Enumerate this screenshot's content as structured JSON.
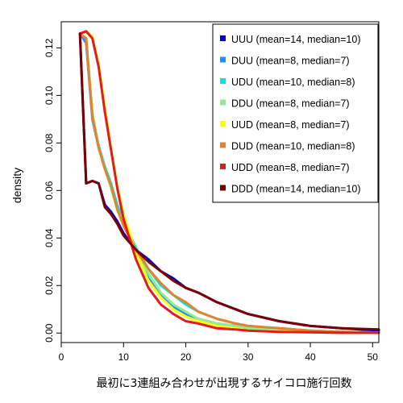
{
  "chart_data": {
    "type": "line",
    "xlabel": "最初に3連組み合わせが出現するサイコロ施行回数",
    "ylabel": "density",
    "xlim": [
      0,
      51
    ],
    "ylim": [
      0,
      0.13
    ],
    "x_ticks": [
      "0",
      "10",
      "20",
      "30",
      "40",
      "50"
    ],
    "y_ticks": [
      "0.00",
      "0.02",
      "0.04",
      "0.06",
      "0.08",
      "0.10",
      "0.12"
    ],
    "legend_position": "top-right",
    "series": [
      {
        "name": "UUU (mean=14, median=10)",
        "color": "#0000CC",
        "x": [
          3,
          4,
          5,
          6,
          7,
          8,
          9,
          10,
          12,
          14,
          16,
          18,
          20,
          22,
          25,
          28,
          30,
          35,
          40,
          45,
          51
        ],
        "y": [
          0.126,
          0.063,
          0.064,
          0.063,
          0.054,
          0.051,
          0.047,
          0.042,
          0.035,
          0.031,
          0.026,
          0.023,
          0.019,
          0.017,
          0.013,
          0.01,
          0.008,
          0.005,
          0.003,
          0.002,
          0.001
        ]
      },
      {
        "name": "DUU (mean=8, median=7)",
        "color": "#1E90FF",
        "x": [
          3,
          4,
          5,
          6,
          7,
          8,
          9,
          10,
          12,
          14,
          16,
          18,
          20,
          22,
          25,
          28,
          30,
          35,
          40,
          45,
          51
        ],
        "y": [
          0.126,
          0.122,
          0.09,
          0.078,
          0.07,
          0.062,
          0.053,
          0.046,
          0.034,
          0.023,
          0.016,
          0.011,
          0.008,
          0.006,
          0.004,
          0.003,
          0.002,
          0.001,
          0.001,
          0.0005,
          0.0002
        ]
      },
      {
        "name": "UDU (mean=10, median=8)",
        "color": "#00E5E5",
        "x": [
          3,
          4,
          5,
          6,
          7,
          8,
          9,
          10,
          12,
          14,
          16,
          18,
          20,
          22,
          25,
          28,
          30,
          35,
          40,
          45,
          51
        ],
        "y": [
          0.126,
          0.124,
          0.092,
          0.079,
          0.07,
          0.063,
          0.054,
          0.047,
          0.036,
          0.027,
          0.02,
          0.016,
          0.012,
          0.009,
          0.006,
          0.004,
          0.003,
          0.002,
          0.001,
          0.0005,
          0.0002
        ]
      },
      {
        "name": "DDU (mean=8, median=7)",
        "color": "#90EE90",
        "x": [
          3,
          4,
          5,
          6,
          7,
          8,
          9,
          10,
          12,
          14,
          16,
          18,
          20,
          22,
          25,
          28,
          30,
          35,
          40,
          45,
          51
        ],
        "y": [
          0.126,
          0.124,
          0.093,
          0.078,
          0.069,
          0.061,
          0.052,
          0.046,
          0.035,
          0.025,
          0.017,
          0.012,
          0.009,
          0.006,
          0.004,
          0.003,
          0.002,
          0.001,
          0.0006,
          0.0003,
          0.0001
        ]
      },
      {
        "name": "UUD (mean=8, median=7)",
        "color": "#FFFF00",
        "x": [
          3,
          4,
          5,
          6,
          7,
          8,
          9,
          10,
          12,
          14,
          16,
          18,
          20,
          22,
          25,
          28,
          30,
          35,
          40,
          45,
          51
        ],
        "y": [
          0.126,
          0.127,
          0.125,
          0.113,
          0.095,
          0.078,
          0.062,
          0.05,
          0.034,
          0.022,
          0.015,
          0.01,
          0.007,
          0.005,
          0.003,
          0.002,
          0.001,
          0.0006,
          0.0003,
          0.0001,
          0.0001
        ]
      },
      {
        "name": "DUD (mean=10, median=8)",
        "color": "#E8822A",
        "x": [
          3,
          4,
          5,
          6,
          7,
          8,
          9,
          10,
          12,
          14,
          16,
          18,
          20,
          22,
          25,
          28,
          30,
          35,
          40,
          45,
          51
        ],
        "y": [
          0.126,
          0.124,
          0.091,
          0.078,
          0.069,
          0.062,
          0.052,
          0.045,
          0.035,
          0.027,
          0.021,
          0.016,
          0.013,
          0.009,
          0.006,
          0.004,
          0.003,
          0.002,
          0.001,
          0.0005,
          0.0002
        ]
      },
      {
        "name": "UDD (mean=8, median=7)",
        "color": "#E41A1C",
        "x": [
          3,
          4,
          5,
          6,
          7,
          8,
          9,
          10,
          12,
          14,
          16,
          18,
          20,
          22,
          25,
          28,
          30,
          35,
          40,
          45,
          51
        ],
        "y": [
          0.126,
          0.127,
          0.124,
          0.112,
          0.093,
          0.077,
          0.061,
          0.048,
          0.031,
          0.019,
          0.012,
          0.008,
          0.005,
          0.004,
          0.002,
          0.0015,
          0.001,
          0.0005,
          0.0003,
          0.0001,
          0.0001
        ]
      },
      {
        "name": "DDD (mean=14, median=10)",
        "color": "#7B0000",
        "x": [
          3,
          4,
          5,
          6,
          7,
          8,
          9,
          10,
          12,
          14,
          16,
          18,
          20,
          22,
          25,
          28,
          30,
          35,
          40,
          45,
          51
        ],
        "y": [
          0.126,
          0.063,
          0.064,
          0.063,
          0.053,
          0.05,
          0.046,
          0.041,
          0.035,
          0.03,
          0.026,
          0.022,
          0.019,
          0.017,
          0.013,
          0.01,
          0.008,
          0.005,
          0.003,
          0.002,
          0.0015
        ]
      }
    ]
  }
}
